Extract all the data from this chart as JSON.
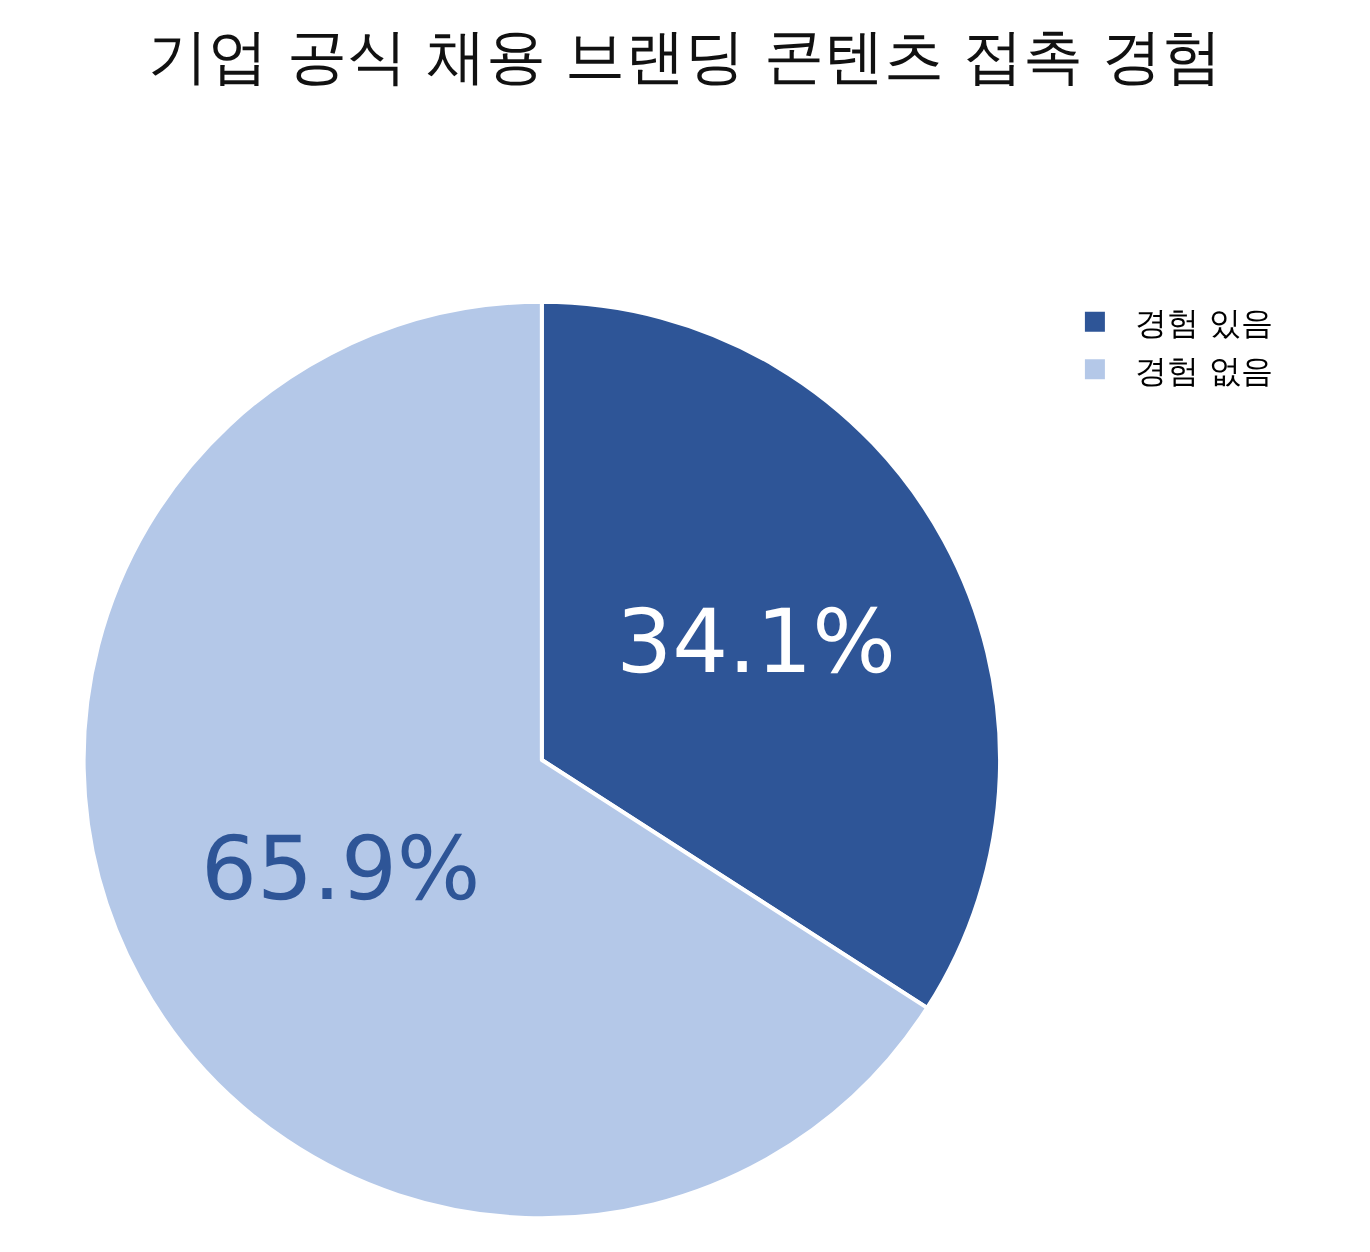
{
  "chart_data": {
    "type": "pie",
    "title": "기업 공식 채용 브랜딩 콘텐츠 접촉 경험",
    "categories": [
      "경험 있음",
      "경험 없음"
    ],
    "values": [
      34.1,
      65.9
    ],
    "colors": [
      "#2e5597",
      "#b4c8e8"
    ],
    "value_labels": [
      "34.1%",
      "65.9%"
    ],
    "legend": "top right"
  }
}
